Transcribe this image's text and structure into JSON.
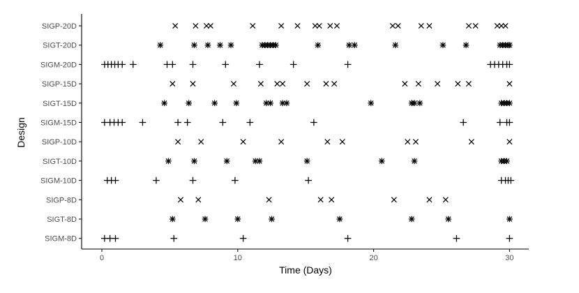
{
  "chart_data": {
    "type": "scatter",
    "title": "",
    "xlabel": "Time (Days)",
    "ylabel": "Design",
    "xlim": [
      -1.5,
      31.5
    ],
    "xticks": [
      0,
      10,
      20,
      30
    ],
    "grid": false,
    "legend": "none",
    "colors": {
      "marks": "#000000",
      "axis": "#000000",
      "labels": "#4d4d4d",
      "background": "#ffffff"
    },
    "categories": [
      "SIGP-20D",
      "SIGT-20D",
      "SIGM-20D",
      "SIGP-15D",
      "SIGT-15D",
      "SIGM-15D",
      "SIGP-10D",
      "SIGT-10D",
      "SIGM-10D",
      "SIGP-8D",
      "SIGT-8D",
      "SIGM-8D"
    ],
    "series": [
      {
        "category": "SIGP-20D",
        "marker": "x",
        "x": [
          5.4,
          6.9,
          7.7,
          8.0,
          11.1,
          13.2,
          14.4,
          15.7,
          16.0,
          16.8,
          17.3,
          21.4,
          21.8,
          23.5,
          24.1,
          27.0,
          27.5,
          29.1,
          29.4,
          29.7
        ]
      },
      {
        "category": "SIGT-20D",
        "marker": "asterisk",
        "x": [
          4.3,
          6.8,
          7.8,
          8.7,
          9.5,
          11.8,
          12.0,
          12.2,
          12.4,
          12.6,
          12.8,
          15.9,
          18.2,
          18.6,
          21.6,
          25.1,
          26.8,
          29.3,
          29.5,
          29.7,
          29.9,
          30.0
        ]
      },
      {
        "category": "SIGM-20D",
        "marker": "plus",
        "x": [
          0.2,
          0.45,
          0.7,
          0.95,
          1.2,
          1.5,
          2.3,
          4.8,
          5.2,
          6.7,
          9.1,
          11.6,
          14.1,
          18.1,
          28.6,
          28.9,
          29.2,
          29.5,
          29.8,
          30.0
        ]
      },
      {
        "category": "SIGP-15D",
        "marker": "x",
        "x": [
          5.2,
          6.7,
          9.7,
          11.7,
          12.9,
          13.3,
          15.1,
          16.5,
          17.1,
          22.3,
          23.3,
          24.7,
          26.2,
          27.0,
          30.0
        ]
      },
      {
        "category": "SIGT-15D",
        "marker": "asterisk",
        "x": [
          4.6,
          6.4,
          8.3,
          9.9,
          12.1,
          12.4,
          13.3,
          13.6,
          19.8,
          22.8,
          23.0,
          23.4,
          29.4,
          29.6,
          29.8,
          30.0
        ]
      },
      {
        "category": "SIGM-15D",
        "marker": "plus",
        "x": [
          0.2,
          0.6,
          0.9,
          1.2,
          1.5,
          3.0,
          5.6,
          6.3,
          8.9,
          10.9,
          15.6,
          26.6,
          29.3,
          29.8,
          30.0
        ]
      },
      {
        "category": "SIGP-10D",
        "marker": "x",
        "x": [
          5.6,
          7.3,
          10.4,
          13.2,
          16.6,
          17.7,
          22.5,
          23.1,
          27.2,
          30.0
        ]
      },
      {
        "category": "SIGT-10D",
        "marker": "asterisk",
        "x": [
          4.9,
          6.8,
          9.2,
          11.3,
          11.6,
          15.1,
          20.6,
          23.0,
          29.4,
          29.6,
          29.8
        ]
      },
      {
        "category": "SIGM-10D",
        "marker": "plus",
        "x": [
          0.4,
          0.7,
          1.0,
          4.0,
          6.7,
          9.8,
          15.2,
          29.4,
          29.7,
          29.9,
          30.1
        ]
      },
      {
        "category": "SIGP-8D",
        "marker": "x",
        "x": [
          5.8,
          7.1,
          12.3,
          16.1,
          16.9,
          21.5,
          24.1,
          25.3
        ]
      },
      {
        "category": "SIGT-8D",
        "marker": "asterisk",
        "x": [
          5.2,
          7.6,
          10.0,
          12.5,
          17.5,
          22.8,
          25.5,
          30.0
        ]
      },
      {
        "category": "SIGM-8D",
        "marker": "plus",
        "x": [
          0.2,
          0.6,
          1.0,
          5.3,
          10.4,
          18.1,
          26.1,
          30.0
        ]
      }
    ]
  }
}
